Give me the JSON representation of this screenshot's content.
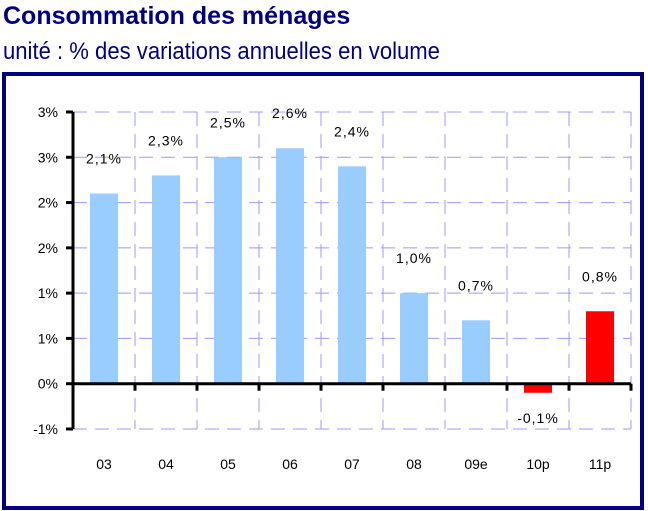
{
  "chart_data": {
    "type": "bar",
    "title": "Consommation des ménages",
    "subtitle": "unité : % des variations annuelles en volume",
    "categories": [
      "03",
      "04",
      "05",
      "06",
      "07",
      "08",
      "09e",
      "10p",
      "11p"
    ],
    "values": [
      2.1,
      2.3,
      2.5,
      2.6,
      2.4,
      1.0,
      0.7,
      -0.1,
      0.8
    ],
    "data_labels": [
      "2,1%",
      "2,3%",
      "2,5%",
      "2,6%",
      "2,4%",
      "1,0%",
      "0,7%",
      "-0,1%",
      "0,8%"
    ],
    "bar_colors": [
      "#99ccff",
      "#99ccff",
      "#99ccff",
      "#99ccff",
      "#99ccff",
      "#99ccff",
      "#99ccff",
      "#ff0000",
      "#ff0000"
    ],
    "ylim": [
      -0.5,
      3.0
    ],
    "yticks": [
      3.0,
      2.5,
      2.0,
      1.5,
      1.0,
      0.5,
      0.0,
      -0.5
    ],
    "ytick_labels": [
      "3%",
      "3%",
      "2%",
      "2%",
      "1%",
      "1%",
      "0%",
      "-1%"
    ],
    "grid": true,
    "grid_color": "#9999ff",
    "frame_color": "#000080"
  }
}
